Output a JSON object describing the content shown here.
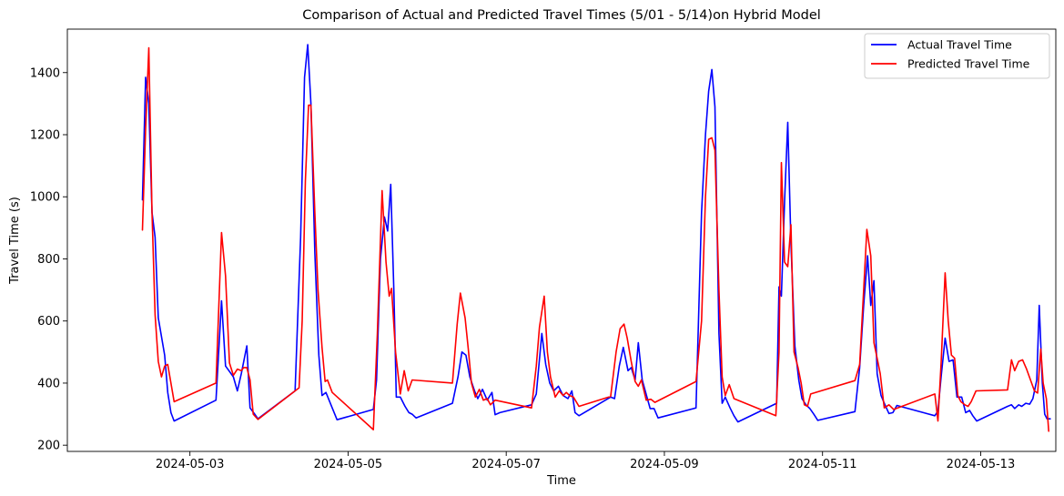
{
  "chart_data": {
    "type": "line",
    "title": "Comparison of Actual and Predicted Travel Times (5/01 - 5/14)on Hybrid Model",
    "xlabel": "Time",
    "ylabel": "Travel Time (s)",
    "x_ticks": [
      "2024-05-03",
      "2024-05-05",
      "2024-05-07",
      "2024-05-09",
      "2024-05-11",
      "2024-05-13"
    ],
    "x_tick_values": [
      3,
      5,
      7,
      9,
      11,
      13
    ],
    "y_ticks": [
      200,
      400,
      600,
      800,
      1000,
      1200,
      1400
    ],
    "xlim": [
      1.45,
      13.95
    ],
    "ylim": [
      180,
      1540
    ],
    "grid": false,
    "legend_position": "top-right",
    "series": [
      {
        "name": "Actual Travel Time",
        "color": "#0000ff",
        "points": [
          [
            2.4,
            990
          ],
          [
            2.44,
            1385
          ],
          [
            2.48,
            1300
          ],
          [
            2.52,
            950
          ],
          [
            2.56,
            870
          ],
          [
            2.6,
            610
          ],
          [
            2.68,
            490
          ],
          [
            2.72,
            370
          ],
          [
            2.76,
            305
          ],
          [
            2.8,
            278
          ],
          [
            3.33,
            345
          ],
          [
            3.4,
            665
          ],
          [
            3.45,
            455
          ],
          [
            3.55,
            420
          ],
          [
            3.6,
            375
          ],
          [
            3.65,
            430
          ],
          [
            3.72,
            520
          ],
          [
            3.76,
            320
          ],
          [
            3.82,
            300
          ],
          [
            3.86,
            285
          ],
          [
            4.33,
            375
          ],
          [
            4.4,
            870
          ],
          [
            4.45,
            1385
          ],
          [
            4.49,
            1490
          ],
          [
            4.53,
            1300
          ],
          [
            4.58,
            820
          ],
          [
            4.63,
            490
          ],
          [
            4.67,
            360
          ],
          [
            4.72,
            370
          ],
          [
            4.8,
            320
          ],
          [
            4.86,
            282
          ],
          [
            5.32,
            315
          ],
          [
            5.36,
            410
          ],
          [
            5.41,
            800
          ],
          [
            5.46,
            935
          ],
          [
            5.5,
            890
          ],
          [
            5.54,
            1040
          ],
          [
            5.58,
            690
          ],
          [
            5.61,
            355
          ],
          [
            5.66,
            355
          ],
          [
            5.72,
            325
          ],
          [
            5.77,
            305
          ],
          [
            5.81,
            300
          ],
          [
            5.86,
            288
          ],
          [
            6.32,
            335
          ],
          [
            6.39,
            420
          ],
          [
            6.44,
            500
          ],
          [
            6.49,
            490
          ],
          [
            6.54,
            420
          ],
          [
            6.6,
            375
          ],
          [
            6.64,
            350
          ],
          [
            6.7,
            380
          ],
          [
            6.76,
            345
          ],
          [
            6.82,
            370
          ],
          [
            6.86,
            298
          ],
          [
            6.92,
            305
          ],
          [
            7.32,
            330
          ],
          [
            7.38,
            365
          ],
          [
            7.45,
            560
          ],
          [
            7.5,
            460
          ],
          [
            7.55,
            400
          ],
          [
            7.6,
            375
          ],
          [
            7.66,
            390
          ],
          [
            7.72,
            360
          ],
          [
            7.78,
            350
          ],
          [
            7.83,
            375
          ],
          [
            7.87,
            305
          ],
          [
            7.92,
            295
          ],
          [
            8.32,
            355
          ],
          [
            8.37,
            350
          ],
          [
            8.43,
            455
          ],
          [
            8.48,
            515
          ],
          [
            8.54,
            440
          ],
          [
            8.58,
            450
          ],
          [
            8.63,
            410
          ],
          [
            8.67,
            530
          ],
          [
            8.72,
            410
          ],
          [
            8.78,
            355
          ],
          [
            8.82,
            318
          ],
          [
            8.87,
            318
          ],
          [
            8.92,
            288
          ],
          [
            9.4,
            320
          ],
          [
            9.47,
            950
          ],
          [
            9.52,
            1200
          ],
          [
            9.56,
            1340
          ],
          [
            9.6,
            1410
          ],
          [
            9.64,
            1290
          ],
          [
            9.69,
            560
          ],
          [
            9.73,
            335
          ],
          [
            9.77,
            355
          ],
          [
            9.83,
            320
          ],
          [
            9.88,
            295
          ],
          [
            9.93,
            275
          ],
          [
            10.42,
            335
          ],
          [
            10.45,
            710
          ],
          [
            10.48,
            680
          ],
          [
            10.52,
            985
          ],
          [
            10.56,
            1240
          ],
          [
            10.6,
            850
          ],
          [
            10.65,
            520
          ],
          [
            10.7,
            410
          ],
          [
            10.74,
            350
          ],
          [
            10.79,
            330
          ],
          [
            10.84,
            318
          ],
          [
            10.89,
            300
          ],
          [
            10.94,
            280
          ],
          [
            11.41,
            308
          ],
          [
            11.47,
            450
          ],
          [
            11.52,
            650
          ],
          [
            11.57,
            810
          ],
          [
            11.61,
            650
          ],
          [
            11.65,
            730
          ],
          [
            11.69,
            430
          ],
          [
            11.74,
            360
          ],
          [
            11.79,
            330
          ],
          [
            11.84,
            302
          ],
          [
            11.89,
            305
          ],
          [
            11.94,
            328
          ],
          [
            12.42,
            295
          ],
          [
            12.46,
            310
          ],
          [
            12.5,
            420
          ],
          [
            12.55,
            545
          ],
          [
            12.6,
            470
          ],
          [
            12.65,
            475
          ],
          [
            12.7,
            355
          ],
          [
            12.76,
            355
          ],
          [
            12.81,
            305
          ],
          [
            12.86,
            312
          ],
          [
            12.9,
            295
          ],
          [
            12.95,
            278
          ],
          [
            13.34,
            325
          ],
          [
            13.39,
            330
          ],
          [
            13.43,
            318
          ],
          [
            13.48,
            330
          ],
          [
            13.52,
            325
          ],
          [
            13.57,
            335
          ],
          [
            13.62,
            332
          ],
          [
            13.66,
            350
          ],
          [
            13.71,
            410
          ],
          [
            13.74,
            650
          ],
          [
            13.78,
            400
          ],
          [
            13.81,
            300
          ],
          [
            13.84,
            285
          ],
          [
            13.88,
            285
          ]
        ]
      },
      {
        "name": "Predicted Travel Time",
        "color": "#ff0000",
        "points": [
          [
            2.4,
            893
          ],
          [
            2.44,
            1220
          ],
          [
            2.48,
            1480
          ],
          [
            2.52,
            950
          ],
          [
            2.56,
            620
          ],
          [
            2.6,
            470
          ],
          [
            2.64,
            420
          ],
          [
            2.68,
            455
          ],
          [
            2.72,
            460
          ],
          [
            2.76,
            400
          ],
          [
            2.8,
            340
          ],
          [
            3.33,
            400
          ],
          [
            3.4,
            885
          ],
          [
            3.45,
            745
          ],
          [
            3.5,
            465
          ],
          [
            3.55,
            425
          ],
          [
            3.6,
            445
          ],
          [
            3.65,
            440
          ],
          [
            3.68,
            450
          ],
          [
            3.72,
            450
          ],
          [
            3.76,
            410
          ],
          [
            3.8,
            300
          ],
          [
            3.86,
            283
          ],
          [
            4.38,
            385
          ],
          [
            4.42,
            600
          ],
          [
            4.46,
            1050
          ],
          [
            4.5,
            1295
          ],
          [
            4.53,
            1295
          ],
          [
            4.58,
            950
          ],
          [
            4.62,
            700
          ],
          [
            4.67,
            515
          ],
          [
            4.71,
            405
          ],
          [
            4.74,
            410
          ],
          [
            4.8,
            370
          ],
          [
            5.32,
            250
          ],
          [
            5.37,
            560
          ],
          [
            5.43,
            1020
          ],
          [
            5.48,
            790
          ],
          [
            5.52,
            680
          ],
          [
            5.55,
            705
          ],
          [
            5.6,
            500
          ],
          [
            5.66,
            365
          ],
          [
            5.71,
            440
          ],
          [
            5.76,
            375
          ],
          [
            5.81,
            410
          ],
          [
            6.32,
            400
          ],
          [
            6.38,
            590
          ],
          [
            6.42,
            690
          ],
          [
            6.48,
            610
          ],
          [
            6.52,
            510
          ],
          [
            6.56,
            400
          ],
          [
            6.61,
            355
          ],
          [
            6.66,
            380
          ],
          [
            6.71,
            345
          ],
          [
            6.76,
            350
          ],
          [
            6.8,
            330
          ],
          [
            6.86,
            345
          ],
          [
            7.32,
            320
          ],
          [
            7.38,
            455
          ],
          [
            7.42,
            580
          ],
          [
            7.48,
            680
          ],
          [
            7.52,
            500
          ],
          [
            7.56,
            420
          ],
          [
            7.62,
            355
          ],
          [
            7.67,
            375
          ],
          [
            7.72,
            360
          ],
          [
            7.76,
            370
          ],
          [
            7.8,
            360
          ],
          [
            7.85,
            355
          ],
          [
            7.92,
            325
          ],
          [
            8.32,
            357
          ],
          [
            8.39,
            500
          ],
          [
            8.44,
            575
          ],
          [
            8.49,
            590
          ],
          [
            8.53,
            545
          ],
          [
            8.58,
            470
          ],
          [
            8.63,
            405
          ],
          [
            8.67,
            390
          ],
          [
            8.71,
            410
          ],
          [
            8.77,
            345
          ],
          [
            8.83,
            348
          ],
          [
            8.88,
            338
          ],
          [
            9.4,
            405
          ],
          [
            9.47,
            600
          ],
          [
            9.52,
            1000
          ],
          [
            9.56,
            1185
          ],
          [
            9.6,
            1190
          ],
          [
            9.64,
            1150
          ],
          [
            9.69,
            700
          ],
          [
            9.73,
            420
          ],
          [
            9.77,
            360
          ],
          [
            9.82,
            395
          ],
          [
            9.88,
            350
          ],
          [
            10.41,
            295
          ],
          [
            10.45,
            500
          ],
          [
            10.48,
            1110
          ],
          [
            10.52,
            790
          ],
          [
            10.56,
            775
          ],
          [
            10.6,
            910
          ],
          [
            10.64,
            500
          ],
          [
            10.69,
            450
          ],
          [
            10.73,
            400
          ],
          [
            10.77,
            330
          ],
          [
            10.81,
            325
          ],
          [
            10.85,
            365
          ],
          [
            11.41,
            408
          ],
          [
            11.47,
            460
          ],
          [
            11.52,
            700
          ],
          [
            11.56,
            895
          ],
          [
            11.61,
            810
          ],
          [
            11.65,
            530
          ],
          [
            11.69,
            480
          ],
          [
            11.73,
            430
          ],
          [
            11.78,
            320
          ],
          [
            11.84,
            330
          ],
          [
            11.9,
            315
          ],
          [
            12.42,
            365
          ],
          [
            12.46,
            278
          ],
          [
            12.5,
            465
          ],
          [
            12.55,
            755
          ],
          [
            12.59,
            600
          ],
          [
            12.63,
            490
          ],
          [
            12.67,
            480
          ],
          [
            12.71,
            360
          ],
          [
            12.75,
            340
          ],
          [
            12.8,
            330
          ],
          [
            12.84,
            325
          ],
          [
            12.88,
            340
          ],
          [
            12.94,
            375
          ],
          [
            13.34,
            378
          ],
          [
            13.39,
            475
          ],
          [
            13.43,
            440
          ],
          [
            13.48,
            470
          ],
          [
            13.53,
            475
          ],
          [
            13.58,
            445
          ],
          [
            13.63,
            410
          ],
          [
            13.68,
            375
          ],
          [
            13.72,
            368
          ],
          [
            13.76,
            510
          ],
          [
            13.79,
            400
          ],
          [
            13.83,
            350
          ],
          [
            13.86,
            245
          ]
        ]
      }
    ]
  }
}
